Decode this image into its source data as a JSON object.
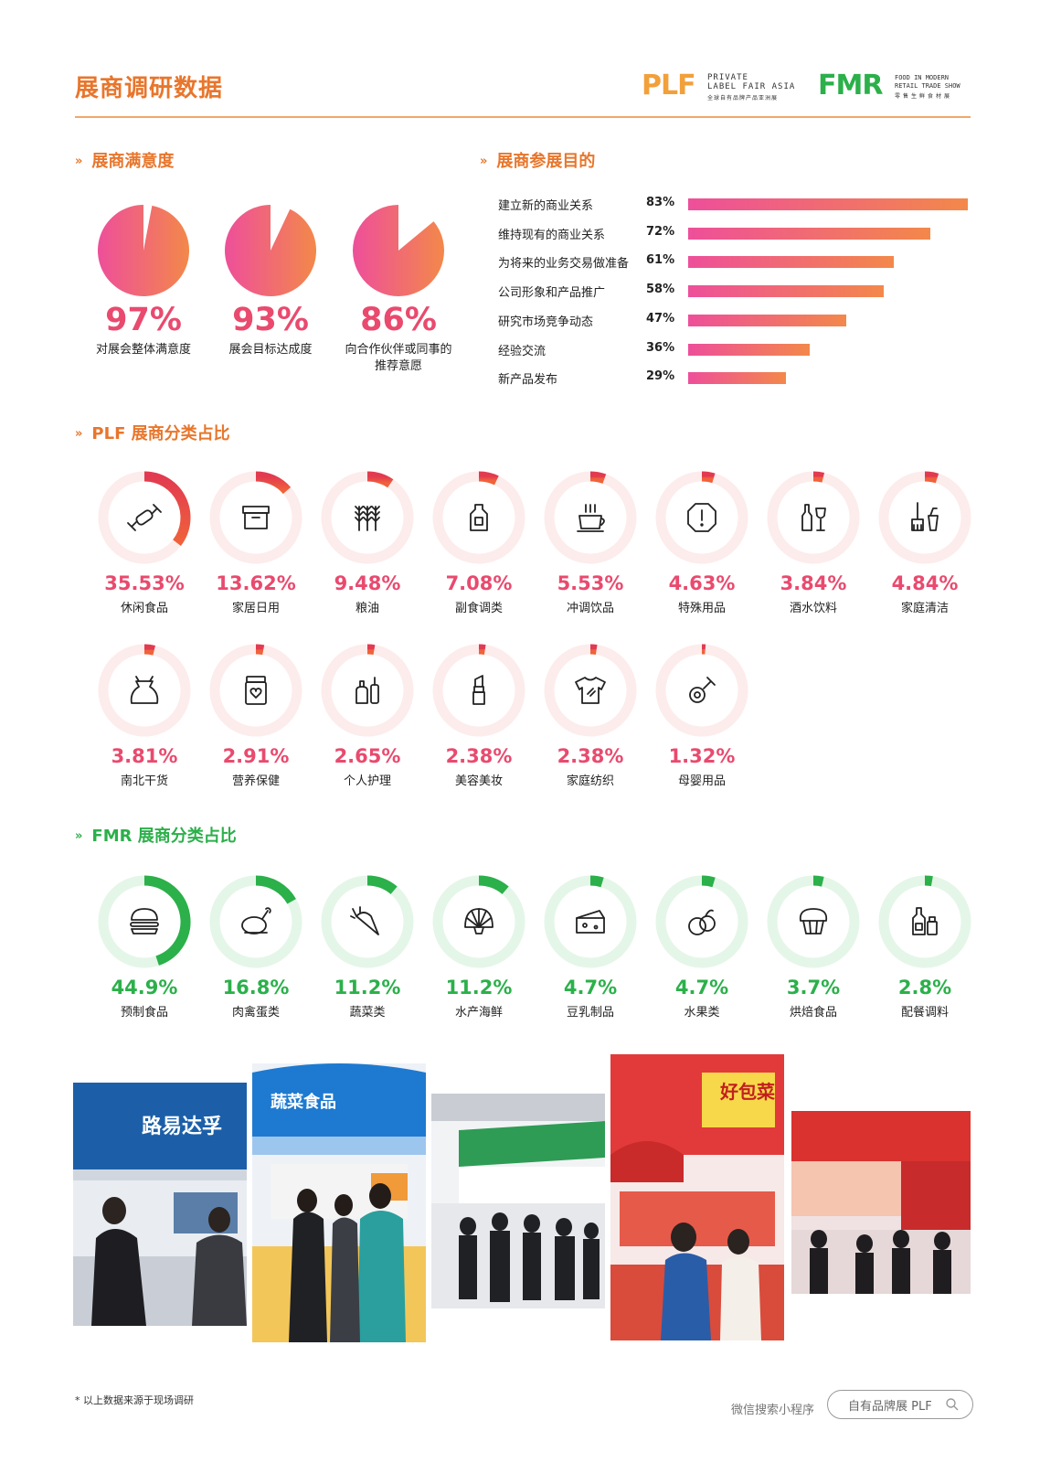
{
  "page_title": "展商调研数据",
  "logos": {
    "plf": {
      "mark": "PLF",
      "line1": "PRIVATE",
      "line2": "LABEL FAIR ASIA",
      "line3": "全球自有品牌产品亚洲展"
    },
    "fmr": {
      "mark": "FMR",
      "line1": "FOOD IN MODERN",
      "line2": "RETAIL TRADE SHOW",
      "line3": "零售生鲜食材展"
    }
  },
  "colors": {
    "accent_orange": "#e8762c",
    "accent_pink": "#e94a6e",
    "accent_green": "#2bb04a",
    "grad_start": "#ee4f9a",
    "grad_end": "#f3884a"
  },
  "satisfaction": {
    "heading": "展商满意度",
    "items": [
      {
        "value": 97,
        "label": "97%",
        "caption": "对展会整体满意度"
      },
      {
        "value": 93,
        "label": "93%",
        "caption": "展会目标达成度"
      },
      {
        "value": 86,
        "label": "86%",
        "caption_lines": [
          "向合作伙伴或同事的",
          "推荐意愿"
        ]
      }
    ]
  },
  "purpose": {
    "heading": "展商参展目的",
    "items": [
      {
        "label": "建立新的商业关系",
        "value": 83,
        "pct": "83%"
      },
      {
        "label": "维持现有的商业关系",
        "value": 72,
        "pct": "72%"
      },
      {
        "label": "为将来的业务交易做准备",
        "value": 61,
        "pct": "61%"
      },
      {
        "label": "公司形象和产品推广",
        "value": 58,
        "pct": "58%"
      },
      {
        "label": "研究市场竞争动态",
        "value": 47,
        "pct": "47%"
      },
      {
        "label": "经验交流",
        "value": 36,
        "pct": "36%"
      },
      {
        "label": "新产品发布",
        "value": 29,
        "pct": "29%"
      }
    ]
  },
  "plf": {
    "heading": "PLF 展商分类占比",
    "items": [
      {
        "label": "休闲食品",
        "value": 35.53,
        "pct": "35.53%",
        "icon": "candy-icon"
      },
      {
        "label": "家居日用",
        "value": 13.62,
        "pct": "13.62%",
        "icon": "storage-box-icon"
      },
      {
        "label": "粮油",
        "value": 9.48,
        "pct": "9.48%",
        "icon": "wheat-icon"
      },
      {
        "label": "副食调类",
        "value": 7.08,
        "pct": "7.08%",
        "icon": "oil-bottle-icon"
      },
      {
        "label": "冲调饮品",
        "value": 5.53,
        "pct": "5.53%",
        "icon": "hot-cup-icon"
      },
      {
        "label": "特殊用品",
        "value": 4.63,
        "pct": "4.63%",
        "icon": "alert-icon"
      },
      {
        "label": "酒水饮料",
        "value": 3.84,
        "pct": "3.84%",
        "icon": "wine-icon"
      },
      {
        "label": "家庭清洁",
        "value": 4.84,
        "pct": "4.84%",
        "icon": "cleaning-icon"
      },
      {
        "label": "南北干货",
        "value": 3.81,
        "pct": "3.81%",
        "icon": "sack-icon"
      },
      {
        "label": "营养保健",
        "value": 2.91,
        "pct": "2.91%",
        "icon": "supplement-jar-icon"
      },
      {
        "label": "个人护理",
        "value": 2.65,
        "pct": "2.65%",
        "icon": "toiletries-icon"
      },
      {
        "label": "美容美妆",
        "value": 2.38,
        "pct": "2.38%",
        "icon": "lipstick-icon"
      },
      {
        "label": "家庭纺织",
        "value": 2.38,
        "pct": "2.38%",
        "icon": "tshirt-icon"
      },
      {
        "label": "母婴用品",
        "value": 1.32,
        "pct": "1.32%",
        "icon": "pacifier-icon"
      }
    ]
  },
  "fmr": {
    "heading": "FMR 展商分类占比",
    "items": [
      {
        "label": "预制食品",
        "value": 44.9,
        "pct": "44.9%",
        "icon": "burger-icon"
      },
      {
        "label": "肉禽蛋类",
        "value": 16.8,
        "pct": "16.8%",
        "icon": "chicken-leg-icon"
      },
      {
        "label": "蔬菜类",
        "value": 11.2,
        "pct": "11.2%",
        "icon": "carrot-icon"
      },
      {
        "label": "水产海鲜",
        "value": 11.2,
        "pct": "11.2%",
        "icon": "shell-icon"
      },
      {
        "label": "豆乳制品",
        "value": 4.7,
        "pct": "4.7%",
        "icon": "cheese-icon"
      },
      {
        "label": "水果类",
        "value": 4.7,
        "pct": "4.7%",
        "icon": "fruit-icon"
      },
      {
        "label": "烘焙食品",
        "value": 3.7,
        "pct": "3.7%",
        "icon": "muffin-icon"
      },
      {
        "label": "配餐调料",
        "value": 2.8,
        "pct": "2.8%",
        "icon": "condiment-icon"
      }
    ]
  },
  "photos": [
    {
      "sign_text": "路易达孚"
    },
    {
      "sign_text": "蔬菜食品"
    },
    {
      "sign_text": ""
    },
    {
      "sign_text": "好包菜"
    },
    {
      "sign_text": ""
    }
  ],
  "footer": {
    "note": "* 以上数据来源于现场调研",
    "search_label": "微信搜索小程序",
    "search_text": "自有品牌展 PLF"
  },
  "chart_data": [
    {
      "type": "pie",
      "title": "展商满意度",
      "categories": [
        "对展会整体满意度",
        "展会目标达成度",
        "向合作伙伴或同事的推荐意愿"
      ],
      "values": [
        97,
        93,
        86
      ]
    },
    {
      "type": "bar",
      "title": "展商参展目的",
      "categories": [
        "建立新的商业关系",
        "维持现有的商业关系",
        "为将来的业务交易做准备",
        "公司形象和产品推广",
        "研究市场竞争动态",
        "经验交流",
        "新产品发布"
      ],
      "values": [
        83,
        72,
        61,
        58,
        47,
        36,
        29
      ]
    },
    {
      "type": "pie",
      "title": "PLF 展商分类占比",
      "categories": [
        "休闲食品",
        "家居日用",
        "粮油",
        "副食调类",
        "冲调饮品",
        "特殊用品",
        "酒水饮料",
        "家庭清洁",
        "南北干货",
        "营养保健",
        "个人护理",
        "美容美妆",
        "家庭纺织",
        "母婴用品"
      ],
      "values": [
        35.53,
        13.62,
        9.48,
        7.08,
        5.53,
        4.63,
        3.84,
        4.84,
        3.81,
        2.91,
        2.65,
        2.38,
        2.38,
        1.32
      ]
    },
    {
      "type": "pie",
      "title": "FMR 展商分类占比",
      "categories": [
        "预制食品",
        "肉禽蛋类",
        "蔬菜类",
        "水产海鲜",
        "豆乳制品",
        "水果类",
        "烘焙食品",
        "配餐调料"
      ],
      "values": [
        44.9,
        16.8,
        11.2,
        11.2,
        4.7,
        4.7,
        3.7,
        2.8
      ]
    }
  ]
}
